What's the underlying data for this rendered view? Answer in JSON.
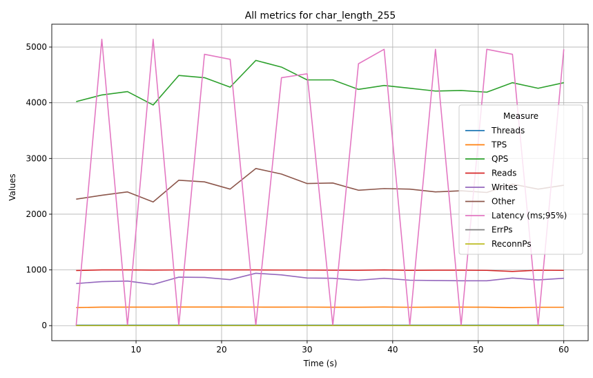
{
  "chart_data": {
    "type": "line",
    "title": "All metrics for char_length_255",
    "xlabel": "Time (s)",
    "ylabel": "Values",
    "xlim": [
      0.15,
      62.85
    ],
    "ylim": [
      -270,
      5410
    ],
    "xticks": [
      10,
      20,
      30,
      40,
      50,
      60
    ],
    "yticks": [
      0,
      1000,
      2000,
      3000,
      4000,
      5000
    ],
    "grid": true,
    "legend": {
      "title": "Measure",
      "placement": "center-right"
    },
    "x": [
      3,
      6,
      9,
      12,
      15,
      18,
      21,
      24,
      27,
      30,
      33,
      36,
      39,
      42,
      45,
      48,
      51,
      54,
      57,
      60
    ],
    "series": [
      {
        "name": "Threads",
        "color": "#1f77b4",
        "values": [
          8,
          8,
          8,
          8,
          8,
          8,
          8,
          8,
          8,
          8,
          8,
          8,
          8,
          8,
          8,
          8,
          8,
          8,
          8,
          8
        ]
      },
      {
        "name": "TPS",
        "color": "#ff7f0e",
        "values": [
          325,
          332,
          332,
          332,
          334,
          334,
          334,
          333,
          332,
          333,
          331,
          331,
          334,
          330,
          332,
          332,
          331,
          323,
          330,
          330
        ]
      },
      {
        "name": "QPS",
        "color": "#2ca02c",
        "values": [
          4020,
          4140,
          4200,
          3960,
          4490,
          4450,
          4280,
          4760,
          4640,
          4410,
          4410,
          4240,
          4310,
          4260,
          4210,
          4220,
          4190,
          4360,
          4260,
          4360
        ]
      },
      {
        "name": "Reads",
        "color": "#d62728",
        "values": [
          990,
          1000,
          1000,
          997,
          1000,
          1000,
          1000,
          1000,
          998,
          998,
          996,
          994,
          1000,
          993,
          996,
          996,
          992,
          972,
          995,
          992
        ]
      },
      {
        "name": "Writes",
        "color": "#9467bd",
        "values": [
          755,
          790,
          800,
          740,
          870,
          865,
          825,
          940,
          910,
          855,
          850,
          815,
          850,
          815,
          810,
          805,
          805,
          855,
          820,
          850
        ]
      },
      {
        "name": "Other",
        "color": "#8c564b",
        "values": [
          2270,
          2340,
          2400,
          2220,
          2610,
          2580,
          2450,
          2820,
          2720,
          2550,
          2560,
          2430,
          2460,
          2450,
          2400,
          2420,
          2390,
          2540,
          2450,
          2520
        ]
      },
      {
        "name": "Latency (ms;95%)",
        "color": "#e377c2",
        "values": [
          0,
          5140,
          0,
          5140,
          0,
          4870,
          4780,
          0,
          4450,
          4520,
          0,
          4700,
          4960,
          0,
          4960,
          0,
          4960,
          4870,
          0,
          4960
        ]
      },
      {
        "name": "ErrPs",
        "color": "#7f7f7f",
        "values": [
          0,
          0,
          0,
          0,
          0,
          0,
          0,
          0,
          0,
          0,
          0,
          0,
          0,
          0,
          0,
          0,
          0,
          0,
          0,
          0
        ]
      },
      {
        "name": "ReconnPs",
        "color": "#bcbd22",
        "values": [
          0,
          0,
          0,
          0,
          0,
          0,
          0,
          0,
          0,
          0,
          0,
          0,
          0,
          0,
          0,
          0,
          0,
          0,
          0,
          0
        ]
      }
    ]
  }
}
